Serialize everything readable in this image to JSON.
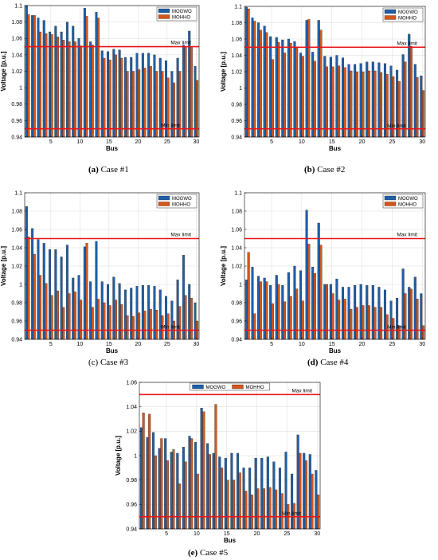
{
  "colors": {
    "mogwo": "#1f5fa8",
    "mohho": "#d4561c",
    "limit": "#e8141a",
    "grid": "#d9d9d9"
  },
  "chart_data": [
    {
      "type": "bar",
      "caption_label": "(a)",
      "caption_text": "Case #1",
      "xlabel": "Bus",
      "ylabel": "Voltage [p.u.]",
      "ylim": [
        0.94,
        1.1
      ],
      "yticks": [
        "0.94",
        "0.96",
        "0.98",
        "1",
        "1.02",
        "1.04",
        "1.06",
        "1.08",
        "1.1"
      ],
      "xticks": [
        "5",
        "10",
        "15",
        "20",
        "25",
        "30"
      ],
      "legend_position": "top-right",
      "max_limit": {
        "value": 1.05,
        "label": "Max limit"
      },
      "min_limit": {
        "value": 0.95,
        "label": "Min limit"
      },
      "categories": [
        1,
        2,
        3,
        4,
        5,
        6,
        7,
        8,
        9,
        10,
        11,
        12,
        13,
        14,
        15,
        16,
        17,
        18,
        19,
        20,
        21,
        22,
        23,
        24,
        25,
        26,
        27,
        28,
        29,
        30
      ],
      "series": [
        {
          "name": "MOGWO",
          "values": [
            1.1,
            1.088,
            1.085,
            1.082,
            1.068,
            1.075,
            1.068,
            1.08,
            1.075,
            1.06,
            1.097,
            1.056,
            1.092,
            1.045,
            1.044,
            1.047,
            1.046,
            1.037,
            1.037,
            1.042,
            1.042,
            1.042,
            1.04,
            1.036,
            1.033,
            1.02,
            1.036,
            1.052,
            1.069,
            1.026
          ]
        },
        {
          "name": "MOHHO",
          "values": [
            1.089,
            1.088,
            1.068,
            1.066,
            1.065,
            1.062,
            1.058,
            1.056,
            1.056,
            1.051,
            1.087,
            1.052,
            1.085,
            1.036,
            1.034,
            1.04,
            1.036,
            1.02,
            1.02,
            1.022,
            1.024,
            1.026,
            1.02,
            1.02,
            1.012,
            1.006,
            1.02,
            1.05,
            1.049,
            1.009
          ]
        }
      ]
    },
    {
      "type": "bar",
      "caption_label": "(b)",
      "caption_text": "Case #2",
      "xlabel": "Bus",
      "ylabel": "Voltage [p.u.]",
      "ylim": [
        0.94,
        1.1
      ],
      "yticks": [
        "0.94",
        "0.96",
        "0.98",
        "1",
        "1.02",
        "1.04",
        "1.06",
        "1.08",
        "1.1"
      ],
      "xticks": [
        "5",
        "10",
        "15",
        "20",
        "25",
        "30"
      ],
      "legend_position": "top-right",
      "max_limit": {
        "value": 1.05,
        "label": "Max limit"
      },
      "min_limit": {
        "value": 0.95,
        "label": "Min limit"
      },
      "categories": [
        1,
        2,
        3,
        4,
        5,
        6,
        7,
        8,
        9,
        10,
        11,
        12,
        13,
        14,
        15,
        16,
        17,
        18,
        19,
        20,
        21,
        22,
        23,
        24,
        25,
        26,
        27,
        28,
        29,
        30
      ],
      "series": [
        {
          "name": "MOGWO",
          "values": [
            1.099,
            1.086,
            1.08,
            1.076,
            1.063,
            1.062,
            1.059,
            1.06,
            1.057,
            1.043,
            1.083,
            1.044,
            1.083,
            1.039,
            1.038,
            1.04,
            1.037,
            1.029,
            1.029,
            1.03,
            1.032,
            1.032,
            1.031,
            1.03,
            1.027,
            1.022,
            1.041,
            1.066,
            1.029,
            1.015
          ]
        },
        {
          "name": "MOHHO",
          "values": [
            1.097,
            1.082,
            1.071,
            1.068,
            1.035,
            1.056,
            1.043,
            1.055,
            1.05,
            1.039,
            1.084,
            1.033,
            1.071,
            1.026,
            1.026,
            1.027,
            1.025,
            1.021,
            1.02,
            1.02,
            1.021,
            1.021,
            1.019,
            1.017,
            1.014,
            1.008,
            1.032,
            1.051,
            1.013,
            0.997
          ]
        }
      ]
    },
    {
      "type": "bar",
      "caption_label": "(c)",
      "caption_text": "Case #3",
      "xlabel": "Bus",
      "ylabel": "Voltage [p.u.]",
      "ylim": [
        0.94,
        1.1
      ],
      "yticks": [
        "0.94",
        "0.96",
        "0.98",
        "1",
        "1.02",
        "1.04",
        "1.06",
        "1.08",
        "1.1"
      ],
      "xticks": [
        "5",
        "10",
        "15",
        "20",
        "25",
        "30"
      ],
      "legend_position": "top-right",
      "max_limit": {
        "value": 1.05,
        "label": "Max limit"
      },
      "min_limit": {
        "value": 0.95,
        "label": "Min limit"
      },
      "categories": [
        1,
        2,
        3,
        4,
        5,
        6,
        7,
        8,
        9,
        10,
        11,
        12,
        13,
        14,
        15,
        16,
        17,
        18,
        19,
        20,
        21,
        22,
        23,
        24,
        25,
        26,
        27,
        28,
        29,
        30
      ],
      "series": [
        {
          "name": "MOGWO",
          "values": [
            1.085,
            1.061,
            1.049,
            1.045,
            1.038,
            1.038,
            1.03,
            1.043,
            1.007,
            1.01,
            1.041,
            1.003,
            1.047,
            1.003,
            1.0,
            1.008,
            1.001,
            0.994,
            0.996,
            0.998,
            0.999,
            0.999,
            0.998,
            0.994,
            0.987,
            0.982,
            1.005,
            1.032,
            1.0,
            0.98
          ]
        },
        {
          "name": "MOHHO",
          "values": [
            1.052,
            1.033,
            1.01,
            1.001,
            0.988,
            0.993,
            0.975,
            0.99,
            0.992,
            0.983,
            1.045,
            0.975,
            0.984,
            0.98,
            0.977,
            0.983,
            0.978,
            0.966,
            0.965,
            0.969,
            0.971,
            0.973,
            0.972,
            0.966,
            0.968,
            0.96,
            0.976,
            0.988,
            0.985,
            0.96
          ]
        }
      ]
    },
    {
      "type": "bar",
      "caption_label": "(d)",
      "caption_text": "Case #4",
      "xlabel": "Bus",
      "ylabel": "Voltage [p.u.]",
      "ylim": [
        0.94,
        1.1
      ],
      "yticks": [
        "0.94",
        "0.96",
        "0.98",
        "1",
        "1.02",
        "1.04",
        "1.06",
        "1.08",
        "1.1"
      ],
      "xticks": [
        "5",
        "10",
        "15",
        "20",
        "25",
        "30"
      ],
      "legend_position": "top-right",
      "max_limit": {
        "value": 1.05,
        "label": "Max limit"
      },
      "min_limit": {
        "value": 0.95,
        "label": "Min limit"
      },
      "categories": [
        1,
        2,
        3,
        4,
        5,
        6,
        7,
        8,
        9,
        10,
        11,
        12,
        13,
        14,
        15,
        16,
        17,
        18,
        19,
        20,
        21,
        22,
        23,
        24,
        25,
        26,
        27,
        28,
        29,
        30
      ],
      "series": [
        {
          "name": "MOGWO",
          "values": [
            1.005,
            1.019,
            1.009,
            1.007,
            0.999,
            1.01,
            0.999,
            1.013,
            1.02,
            1.015,
            1.081,
            1.019,
            1.067,
            1.0,
            1.0,
            1.006,
            0.997,
            0.997,
            0.999,
            1.0,
            0.999,
            0.999,
            0.997,
            0.994,
            0.982,
            0.985,
            1.017,
            0.997,
            1.008,
            0.99
          ]
        },
        {
          "name": "MOHHO",
          "values": [
            1.035,
            0.968,
            1.003,
            1.003,
            0.979,
            1.0,
            0.981,
            0.987,
            0.995,
            0.982,
            1.044,
            1.012,
            1.043,
            1.0,
            0.99,
            0.983,
            0.984,
            0.973,
            0.975,
            0.977,
            0.977,
            0.975,
            0.975,
            0.967,
            0.963,
            0.955,
            0.99,
            0.995,
            0.984,
            0.955
          ]
        }
      ]
    },
    {
      "type": "bar",
      "caption_label": "(e)",
      "caption_text": "Case #5",
      "xlabel": "Bus",
      "ylabel": "Voltage [p.u.]",
      "ylim": [
        0.94,
        1.06
      ],
      "yticks": [
        "0.94",
        "0.96",
        "0.98",
        "1",
        "1.02",
        "1.04",
        "1.06"
      ],
      "xticks": [
        "5",
        "10",
        "15",
        "20",
        "25",
        "30"
      ],
      "legend_position": "top-center",
      "max_limit": {
        "value": 1.05,
        "label": "Max limit"
      },
      "min_limit": {
        "value": 0.95,
        "label": "Min limit"
      },
      "categories": [
        1,
        2,
        3,
        4,
        5,
        6,
        7,
        8,
        9,
        10,
        11,
        12,
        13,
        14,
        15,
        16,
        17,
        18,
        19,
        20,
        21,
        22,
        23,
        24,
        25,
        26,
        27,
        28,
        29,
        30
      ],
      "series": [
        {
          "name": "MOGWO",
          "values": [
            1.023,
            1.015,
            1.019,
            1.006,
            1.014,
            1.003,
            1.002,
            1.007,
            1.016,
            1.011,
            1.039,
            1.01,
            1.002,
            0.999,
            0.998,
            1.002,
            1.002,
            0.99,
            0.99,
            0.998,
            0.998,
            0.999,
            0.995,
            0.99,
            1.003,
            0.985,
            1.017,
            1.002,
            1.001,
            0.988
          ]
        },
        {
          "name": "MOHHO",
          "values": [
            1.035,
            1.034,
            1.0,
            1.014,
            0.996,
            1.005,
            0.977,
            0.995,
            1.014,
            0.985,
            1.036,
            1.001,
            1.042,
            0.99,
            0.98,
            0.98,
            0.986,
            0.971,
            0.968,
            0.973,
            0.973,
            0.974,
            0.972,
            0.969,
            0.96,
            0.961,
            1.002,
            0.996,
            0.985,
            0.968
          ]
        }
      ]
    }
  ]
}
